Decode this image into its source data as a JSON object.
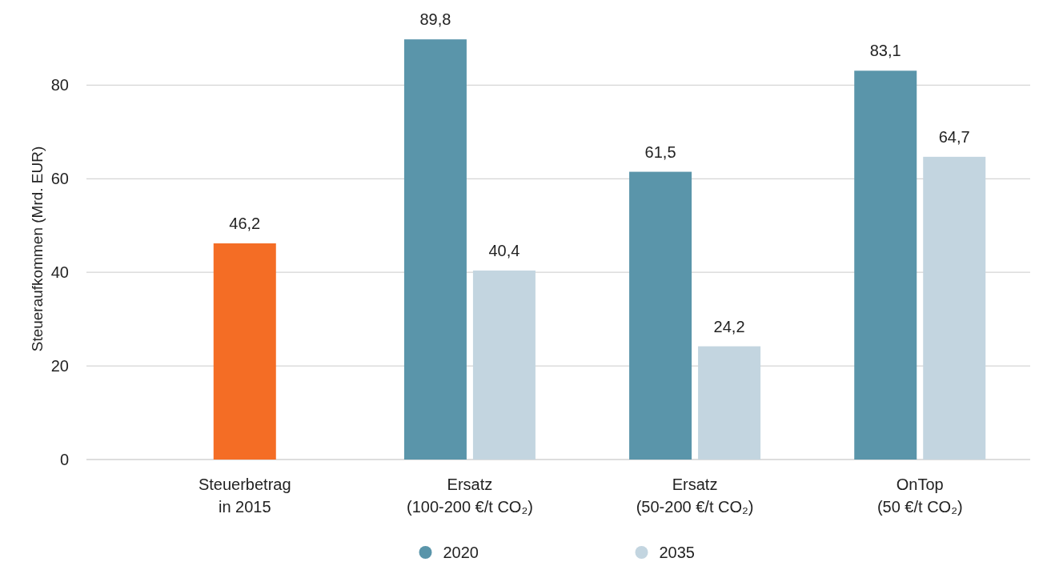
{
  "chart_data": {
    "type": "bar",
    "ylabel": "Steueraufkommen (Mrd. EUR)",
    "categories": [
      "Steuerbetrag\nin 2015",
      "Ersatz\n(100-200 €/t CO₂)",
      "Ersatz\n(50-200 €/t CO₂)",
      "OnTop\n(50 €/t CO₂)"
    ],
    "series": [
      {
        "color": "#f46d25",
        "values": [
          46.2,
          null,
          null,
          null
        ],
        "value_labels": [
          "46,2",
          null,
          null,
          null
        ]
      },
      {
        "name": "2020",
        "color": "#5a95aa",
        "values": [
          null,
          89.8,
          61.5,
          83.1
        ],
        "value_labels": [
          null,
          "89,8",
          "61,5",
          "83,1"
        ]
      },
      {
        "name": "2035",
        "color": "#c3d5e0",
        "values": [
          null,
          40.4,
          24.2,
          64.7
        ],
        "value_labels": [
          null,
          "40,4",
          "24,2",
          "64,7"
        ]
      }
    ],
    "ylim": [
      0,
      90
    ],
    "yticks": [
      0,
      20,
      40,
      60,
      80
    ],
    "grid": "y",
    "legend": "bottom"
  }
}
